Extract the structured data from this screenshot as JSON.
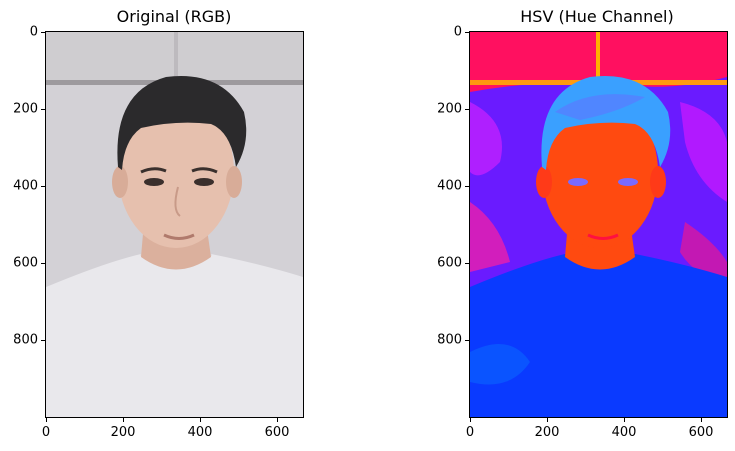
{
  "figure": {
    "panels": [
      {
        "title": "Original (RGB)",
        "image": "portrait-photo",
        "x_ticks": [
          "0",
          "200",
          "400",
          "600"
        ],
        "y_ticks": [
          "0",
          "200",
          "400",
          "600",
          "800"
        ]
      },
      {
        "title": "HSV (Hue Channel)",
        "image": "hue-channel-map",
        "x_ticks": [
          "0",
          "200",
          "400",
          "600"
        ],
        "y_ticks": [
          "0",
          "200",
          "400",
          "600",
          "800"
        ]
      }
    ]
  },
  "colors": {
    "rgb_background": "#d3d1d6",
    "rgb_shirt": "#e9e8ec",
    "rgb_skin": "#e6c0ae",
    "rgb_hair": "#2b2a2c",
    "hue_background": "#6a1bff",
    "hue_top": "#ff1060",
    "hue_skin": "#ff4a10",
    "hue_hair": "#3aa0ff",
    "hue_shirt": "#0a3aff"
  }
}
